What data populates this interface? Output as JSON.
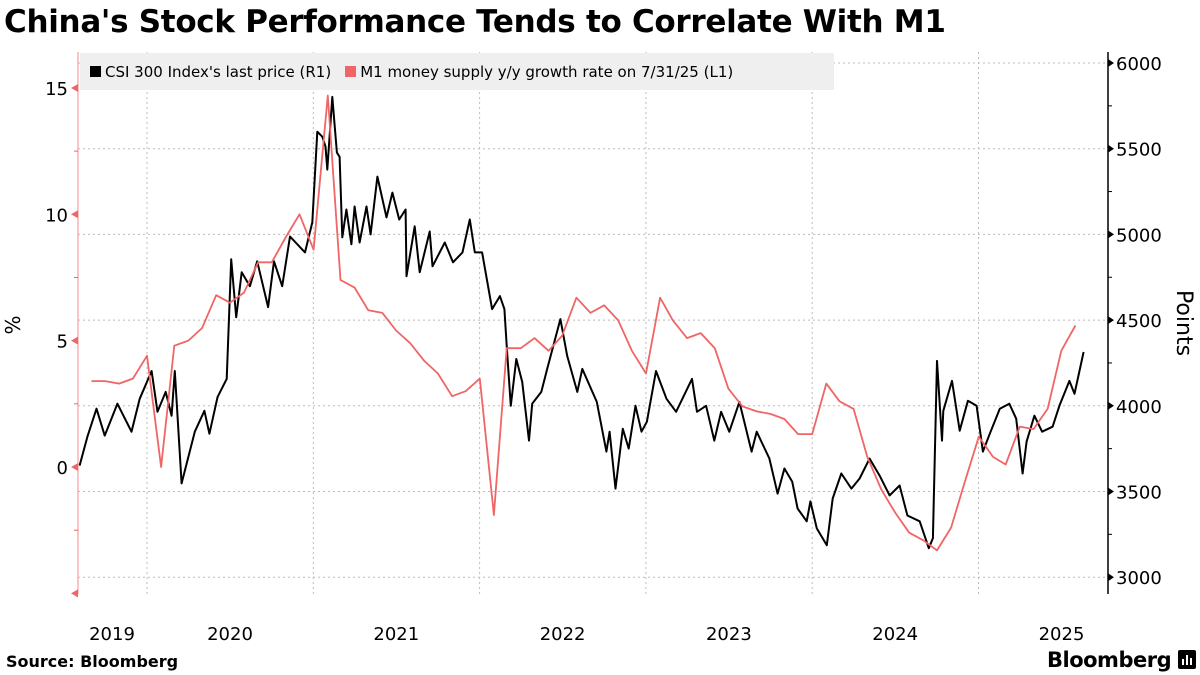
{
  "title": "China's Stock Performance Tends to Correlate With M1",
  "source": "Source: Bloomberg",
  "brand": "Bloomberg",
  "chart_data": {
    "type": "line",
    "title": "China's Stock Performance Tends to Correlate With M1",
    "legend_position": "top-left",
    "grid": true,
    "x_axis": {
      "type": "date",
      "range": [
        "2019-08-01",
        "2025-08-31"
      ],
      "tick_labels": [
        "2019",
        "2020",
        "2021",
        "2022",
        "2023",
        "2024",
        "2025"
      ]
    },
    "y_left": {
      "label": "%",
      "range": [
        -5,
        16
      ],
      "tick_labels": [
        "0",
        "5",
        "10",
        "15"
      ]
    },
    "y_right": {
      "label": "Points",
      "range": [
        2900,
        6050
      ],
      "tick_labels": [
        "3000",
        "3500",
        "4000",
        "4500",
        "5000",
        "5500",
        "6000"
      ]
    },
    "series": [
      {
        "name": "CSI 300 Index's last price (R1)",
        "axis": "right",
        "color": "#000000",
        "points": [
          [
            "2019-08-06",
            3651
          ],
          [
            "2019-08-23",
            3820
          ],
          [
            "2019-09-12",
            3983
          ],
          [
            "2019-09-30",
            3826
          ],
          [
            "2019-10-28",
            4012
          ],
          [
            "2019-11-28",
            3849
          ],
          [
            "2019-12-16",
            4041
          ],
          [
            "2020-01-11",
            4203
          ],
          [
            "2020-01-24",
            3965
          ],
          [
            "2020-02-11",
            4081
          ],
          [
            "2020-02-24",
            3942
          ],
          [
            "2020-03-02",
            4203
          ],
          [
            "2020-03-17",
            3547
          ],
          [
            "2020-04-15",
            3849
          ],
          [
            "2020-05-06",
            3971
          ],
          [
            "2020-05-17",
            3837
          ],
          [
            "2020-06-04",
            4052
          ],
          [
            "2020-06-24",
            4157
          ],
          [
            "2020-07-04",
            4855
          ],
          [
            "2020-07-15",
            4517
          ],
          [
            "2020-07-27",
            4779
          ],
          [
            "2020-08-14",
            4698
          ],
          [
            "2020-08-30",
            4843
          ],
          [
            "2020-09-23",
            4576
          ],
          [
            "2020-10-06",
            4843
          ],
          [
            "2020-10-24",
            4698
          ],
          [
            "2020-11-10",
            4988
          ],
          [
            "2020-12-13",
            4895
          ],
          [
            "2020-12-29",
            5070
          ],
          [
            "2021-01-09",
            5599
          ],
          [
            "2021-01-20",
            5570
          ],
          [
            "2021-01-27",
            5512
          ],
          [
            "2021-01-31",
            5378
          ],
          [
            "2021-02-11",
            5802
          ],
          [
            "2021-02-21",
            5477
          ],
          [
            "2021-02-27",
            5453
          ],
          [
            "2021-03-05",
            4983
          ],
          [
            "2021-03-14",
            5145
          ],
          [
            "2021-03-25",
            4942
          ],
          [
            "2021-04-01",
            5163
          ],
          [
            "2021-04-12",
            4953
          ],
          [
            "2021-04-27",
            5163
          ],
          [
            "2021-05-06",
            5000
          ],
          [
            "2021-05-21",
            5337
          ],
          [
            "2021-06-10",
            5099
          ],
          [
            "2021-06-23",
            5244
          ],
          [
            "2021-07-08",
            5087
          ],
          [
            "2021-07-22",
            5145
          ],
          [
            "2021-07-24",
            4756
          ],
          [
            "2021-08-11",
            5047
          ],
          [
            "2021-08-22",
            4779
          ],
          [
            "2021-09-13",
            5017
          ],
          [
            "2021-09-19",
            4814
          ],
          [
            "2021-10-16",
            4953
          ],
          [
            "2021-11-03",
            4837
          ],
          [
            "2021-11-24",
            4895
          ],
          [
            "2021-12-10",
            5087
          ],
          [
            "2021-12-21",
            4895
          ],
          [
            "2022-01-06",
            4895
          ],
          [
            "2022-01-28",
            4564
          ],
          [
            "2022-02-14",
            4640
          ],
          [
            "2022-02-24",
            4564
          ],
          [
            "2022-03-02",
            4314
          ],
          [
            "2022-03-10",
            4000
          ],
          [
            "2022-03-22",
            4273
          ],
          [
            "2022-04-04",
            4140
          ],
          [
            "2022-04-19",
            3797
          ],
          [
            "2022-04-26",
            4012
          ],
          [
            "2022-05-16",
            4081
          ],
          [
            "2022-05-29",
            4215
          ],
          [
            "2022-06-27",
            4506
          ],
          [
            "2022-07-12",
            4291
          ],
          [
            "2022-08-03",
            4081
          ],
          [
            "2022-08-14",
            4215
          ],
          [
            "2022-09-15",
            4023
          ],
          [
            "2022-10-06",
            3733
          ],
          [
            "2022-10-13",
            3849
          ],
          [
            "2022-10-26",
            3517
          ],
          [
            "2022-11-11",
            3866
          ],
          [
            "2022-11-24",
            3750
          ],
          [
            "2022-12-09",
            4000
          ],
          [
            "2022-12-22",
            3849
          ],
          [
            "2023-01-03",
            3907
          ],
          [
            "2023-01-23",
            4203
          ],
          [
            "2023-02-15",
            4041
          ],
          [
            "2023-03-08",
            3965
          ],
          [
            "2023-04-12",
            4157
          ],
          [
            "2023-04-23",
            3965
          ],
          [
            "2023-05-13",
            4000
          ],
          [
            "2023-05-31",
            3797
          ],
          [
            "2023-06-15",
            3965
          ],
          [
            "2023-07-03",
            3849
          ],
          [
            "2023-07-25",
            4023
          ],
          [
            "2023-08-21",
            3733
          ],
          [
            "2023-09-01",
            3849
          ],
          [
            "2023-09-29",
            3692
          ],
          [
            "2023-10-17",
            3488
          ],
          [
            "2023-11-01",
            3634
          ],
          [
            "2023-11-18",
            3558
          ],
          [
            "2023-11-30",
            3401
          ],
          [
            "2023-12-20",
            3326
          ],
          [
            "2023-12-28",
            3442
          ],
          [
            "2024-01-11",
            3285
          ],
          [
            "2024-02-02",
            3186
          ],
          [
            "2024-02-15",
            3459
          ],
          [
            "2024-03-05",
            3605
          ],
          [
            "2024-03-27",
            3517
          ],
          [
            "2024-04-14",
            3576
          ],
          [
            "2024-05-06",
            3692
          ],
          [
            "2024-05-28",
            3593
          ],
          [
            "2024-06-19",
            3477
          ],
          [
            "2024-07-11",
            3535
          ],
          [
            "2024-07-28",
            3360
          ],
          [
            "2024-08-24",
            3326
          ],
          [
            "2024-09-13",
            3169
          ],
          [
            "2024-09-22",
            3227
          ],
          [
            "2024-10-01",
            4262
          ],
          [
            "2024-10-12",
            3797
          ],
          [
            "2024-10-15",
            3971
          ],
          [
            "2024-11-03",
            4145
          ],
          [
            "2024-11-20",
            3855
          ],
          [
            "2024-12-08",
            4029
          ],
          [
            "2024-12-27",
            4000
          ],
          [
            "2025-01-10",
            3733
          ],
          [
            "2025-01-25",
            3837
          ],
          [
            "2025-02-16",
            3983
          ],
          [
            "2025-03-09",
            4012
          ],
          [
            "2025-03-24",
            3925
          ],
          [
            "2025-04-07",
            3605
          ],
          [
            "2025-04-16",
            3791
          ],
          [
            "2025-05-03",
            3942
          ],
          [
            "2025-05-20",
            3849
          ],
          [
            "2025-06-12",
            3878
          ],
          [
            "2025-06-27",
            4000
          ],
          [
            "2025-07-19",
            4145
          ],
          [
            "2025-07-30",
            4070
          ],
          [
            "2025-08-19",
            4314
          ]
        ]
      },
      {
        "name": "M1 money supply y/y growth rate on 7/31/25 (L1)",
        "axis": "left",
        "color": "#f06565",
        "points": [
          [
            "2019-08",
            3.4
          ],
          [
            "2019-09",
            3.4
          ],
          [
            "2019-10",
            3.3
          ],
          [
            "2019-11",
            3.5
          ],
          [
            "2019-12",
            4.4
          ],
          [
            "2020-01",
            0.0
          ],
          [
            "2020-02",
            4.8
          ],
          [
            "2020-03",
            5.0
          ],
          [
            "2020-04",
            5.5
          ],
          [
            "2020-05",
            6.8
          ],
          [
            "2020-06",
            6.5
          ],
          [
            "2020-07",
            6.9
          ],
          [
            "2020-08",
            8.1
          ],
          [
            "2020-09",
            8.1
          ],
          [
            "2020-10",
            9.1
          ],
          [
            "2020-11",
            10.0
          ],
          [
            "2020-12",
            8.6
          ],
          [
            "2021-01",
            14.7
          ],
          [
            "2021-02",
            7.4
          ],
          [
            "2021-03",
            7.1
          ],
          [
            "2021-04",
            6.2
          ],
          [
            "2021-05",
            6.1
          ],
          [
            "2021-06",
            5.4
          ],
          [
            "2021-07",
            4.9
          ],
          [
            "2021-08",
            4.2
          ],
          [
            "2021-09",
            3.7
          ],
          [
            "2021-10",
            2.8
          ],
          [
            "2021-11",
            3.0
          ],
          [
            "2021-12",
            3.5
          ],
          [
            "2022-01",
            -1.9
          ],
          [
            "2022-02",
            4.7
          ],
          [
            "2022-03",
            4.7
          ],
          [
            "2022-04",
            5.1
          ],
          [
            "2022-05",
            4.6
          ],
          [
            "2022-06",
            5.2
          ],
          [
            "2022-07",
            6.7
          ],
          [
            "2022-08",
            6.1
          ],
          [
            "2022-09",
            6.4
          ],
          [
            "2022-10",
            5.8
          ],
          [
            "2022-11",
            4.6
          ],
          [
            "2022-12",
            3.7
          ],
          [
            "2023-01",
            6.7
          ],
          [
            "2023-02",
            5.8
          ],
          [
            "2023-03",
            5.1
          ],
          [
            "2023-04",
            5.3
          ],
          [
            "2023-05",
            4.7
          ],
          [
            "2023-06",
            3.1
          ],
          [
            "2023-07",
            2.4
          ],
          [
            "2023-08",
            2.2
          ],
          [
            "2023-09",
            2.1
          ],
          [
            "2023-10",
            1.9
          ],
          [
            "2023-11",
            1.3
          ],
          [
            "2023-12",
            1.3
          ],
          [
            "2024-01",
            3.3
          ],
          [
            "2024-02",
            2.6
          ],
          [
            "2024-03",
            2.3
          ],
          [
            "2024-04",
            0.4
          ],
          [
            "2024-05",
            -0.9
          ],
          [
            "2024-06",
            -1.8
          ],
          [
            "2024-07",
            -2.6
          ],
          [
            "2024-08",
            -2.9
          ],
          [
            "2024-09",
            -3.3
          ],
          [
            "2024-10",
            -2.4
          ],
          [
            "2024-11",
            -0.6
          ],
          [
            "2024-12",
            1.2
          ],
          [
            "2025-01",
            0.4
          ],
          [
            "2025-02",
            0.1
          ],
          [
            "2025-03",
            1.6
          ],
          [
            "2025-04",
            1.5
          ],
          [
            "2025-05",
            2.3
          ],
          [
            "2025-06",
            4.6
          ],
          [
            "2025-07",
            5.6
          ]
        ]
      }
    ]
  }
}
